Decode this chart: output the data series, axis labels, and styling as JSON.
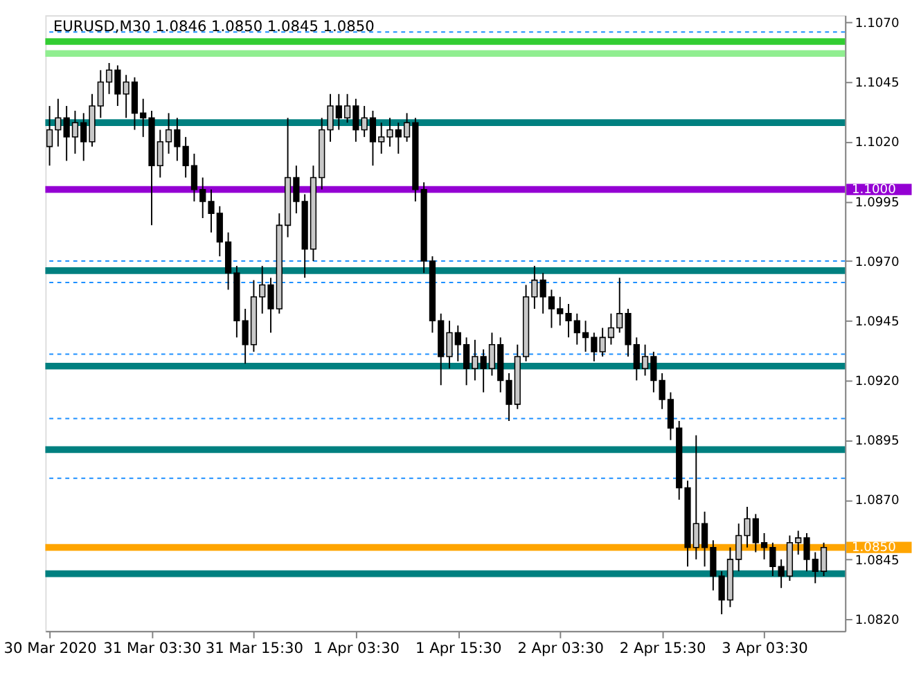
{
  "chart_data": {
    "type": "candlestick",
    "title": "EURUSD,M30  1.0846 1.0850 1.0845 1.0850",
    "x": [
      "2020-03-30T15:30",
      "2020-03-30T16:30",
      "2020-03-30T17:30",
      "2020-03-30T18:30",
      "2020-03-30T19:30",
      "2020-03-30T20:30",
      "2020-03-30T21:30",
      "2020-03-30T22:30",
      "2020-03-30T23:30",
      "2020-03-31T00:30",
      "2020-03-31T01:30",
      "2020-03-31T02:30",
      "2020-03-31T03:30",
      "2020-03-31T04:30",
      "2020-03-31T05:30",
      "2020-03-31T06:30",
      "2020-03-31T07:30",
      "2020-03-31T08:30",
      "2020-03-31T09:30",
      "2020-03-31T10:30",
      "2020-03-31T11:30",
      "2020-03-31T12:30",
      "2020-03-31T13:30",
      "2020-03-31T14:30",
      "2020-03-31T15:30",
      "2020-03-31T16:30",
      "2020-03-31T17:30",
      "2020-03-31T18:30",
      "2020-03-31T19:30",
      "2020-03-31T20:30",
      "2020-03-31T21:30",
      "2020-03-31T22:30",
      "2020-03-31T23:30",
      "2020-04-01T00:30",
      "2020-04-01T01:30",
      "2020-04-01T02:30",
      "2020-04-01T03:30",
      "2020-04-01T04:30",
      "2020-04-01T05:30",
      "2020-04-01T06:30",
      "2020-04-01T07:30",
      "2020-04-01T08:30",
      "2020-04-01T09:30",
      "2020-04-01T10:30",
      "2020-04-01T11:30",
      "2020-04-01T12:30",
      "2020-04-01T13:30",
      "2020-04-01T14:30",
      "2020-04-01T15:30",
      "2020-04-01T16:30",
      "2020-04-01T17:30",
      "2020-04-01T18:30",
      "2020-04-01T19:30",
      "2020-04-01T20:30",
      "2020-04-01T21:30",
      "2020-04-01T22:30",
      "2020-04-01T23:30",
      "2020-04-02T00:30",
      "2020-04-02T01:30",
      "2020-04-02T02:30",
      "2020-04-02T03:30",
      "2020-04-02T04:30",
      "2020-04-02T05:30",
      "2020-04-02T06:30",
      "2020-04-02T07:30",
      "2020-04-02T08:30",
      "2020-04-02T09:30",
      "2020-04-02T10:30",
      "2020-04-02T11:30",
      "2020-04-02T12:30",
      "2020-04-02T13:30",
      "2020-04-02T14:30",
      "2020-04-02T15:30",
      "2020-04-02T16:30",
      "2020-04-02T17:30",
      "2020-04-02T18:30",
      "2020-04-02T19:30",
      "2020-04-02T20:30",
      "2020-04-02T21:30",
      "2020-04-02T22:30",
      "2020-04-02T23:30",
      "2020-04-03T00:30",
      "2020-04-03T01:30",
      "2020-04-03T02:30",
      "2020-04-03T03:30",
      "2020-04-03T04:30",
      "2020-04-03T05:30",
      "2020-04-03T06:30",
      "2020-04-03T07:30",
      "2020-04-03T08:30",
      "2020-04-03T09:30",
      "2020-04-03T10:30"
    ],
    "ohlc": [
      [
        1.1018,
        1.1035,
        1.101,
        1.1025
      ],
      [
        1.1025,
        1.1038,
        1.1018,
        1.103
      ],
      [
        1.103,
        1.1035,
        1.1012,
        1.1022
      ],
      [
        1.1022,
        1.1033,
        1.1015,
        1.1028
      ],
      [
        1.1028,
        1.1032,
        1.1012,
        1.102
      ],
      [
        1.102,
        1.104,
        1.1018,
        1.1035
      ],
      [
        1.1035,
        1.105,
        1.103,
        1.1045
      ],
      [
        1.1045,
        1.1053,
        1.104,
        1.105
      ],
      [
        1.105,
        1.1052,
        1.1035,
        1.104
      ],
      [
        1.104,
        1.1048,
        1.103,
        1.1045
      ],
      [
        1.1045,
        1.1047,
        1.1025,
        1.1032
      ],
      [
        1.1032,
        1.1038,
        1.1022,
        1.103
      ],
      [
        1.103,
        1.1033,
        1.0985,
        1.101
      ],
      [
        1.101,
        1.1025,
        1.1005,
        1.102
      ],
      [
        1.102,
        1.1032,
        1.1015,
        1.1025
      ],
      [
        1.1025,
        1.103,
        1.1012,
        1.1018
      ],
      [
        1.1018,
        1.1022,
        1.1005,
        1.101
      ],
      [
        1.101,
        1.1015,
        1.0995,
        1.1
      ],
      [
        1.1,
        1.1005,
        1.0988,
        1.0995
      ],
      [
        1.0995,
        1.1,
        1.0982,
        1.099
      ],
      [
        1.099,
        1.0993,
        1.0972,
        1.0978
      ],
      [
        1.0978,
        1.0982,
        1.0958,
        1.0965
      ],
      [
        1.0965,
        1.0968,
        1.0938,
        1.0945
      ],
      [
        1.0945,
        1.095,
        1.0927,
        1.0935
      ],
      [
        1.0935,
        1.0962,
        1.0932,
        1.0955
      ],
      [
        1.0955,
        1.0968,
        1.0948,
        1.096
      ],
      [
        1.096,
        1.0963,
        1.094,
        1.095
      ],
      [
        1.095,
        1.099,
        1.0948,
        1.0985
      ],
      [
        1.0985,
        1.103,
        1.098,
        1.1005
      ],
      [
        1.1005,
        1.101,
        1.099,
        1.0995
      ],
      [
        1.0995,
        1.0998,
        1.0963,
        1.0975
      ],
      [
        1.0975,
        1.101,
        1.097,
        1.1005
      ],
      [
        1.1005,
        1.103,
        1.1,
        1.1025
      ],
      [
        1.1025,
        1.104,
        1.102,
        1.1035
      ],
      [
        1.1035,
        1.104,
        1.1025,
        1.103
      ],
      [
        1.103,
        1.104,
        1.1028,
        1.1035
      ],
      [
        1.1035,
        1.1038,
        1.102,
        1.1025
      ],
      [
        1.1025,
        1.1035,
        1.1022,
        1.103
      ],
      [
        1.103,
        1.1033,
        1.101,
        1.102
      ],
      [
        1.102,
        1.1028,
        1.1015,
        1.1022
      ],
      [
        1.1022,
        1.103,
        1.1018,
        1.1025
      ],
      [
        1.1025,
        1.1028,
        1.1015,
        1.1022
      ],
      [
        1.1022,
        1.1032,
        1.102,
        1.1028
      ],
      [
        1.1028,
        1.103,
        1.0995,
        1.1
      ],
      [
        1.1,
        1.1003,
        1.0965,
        1.097
      ],
      [
        1.097,
        1.0972,
        1.094,
        1.0945
      ],
      [
        1.0945,
        1.0948,
        1.0918,
        1.093
      ],
      [
        1.093,
        1.0945,
        1.0925,
        1.094
      ],
      [
        1.094,
        1.0943,
        1.0928,
        1.0935
      ],
      [
        1.0935,
        1.0938,
        1.0918,
        1.0925
      ],
      [
        1.0925,
        1.0937,
        1.092,
        1.093
      ],
      [
        1.093,
        1.0933,
        1.0915,
        1.0925
      ],
      [
        1.0925,
        1.094,
        1.0922,
        1.0935
      ],
      [
        1.0935,
        1.0938,
        1.0915,
        1.092
      ],
      [
        1.092,
        1.0923,
        1.0903,
        1.091
      ],
      [
        1.091,
        1.0935,
        1.0908,
        1.093
      ],
      [
        1.093,
        1.096,
        1.0928,
        1.0955
      ],
      [
        1.0955,
        1.0968,
        1.095,
        1.0962
      ],
      [
        1.0962,
        1.0965,
        1.0948,
        1.0955
      ],
      [
        1.0955,
        1.0958,
        1.0942,
        1.095
      ],
      [
        1.095,
        1.0955,
        1.0943,
        1.0948
      ],
      [
        1.0948,
        1.0952,
        1.0938,
        1.0945
      ],
      [
        1.0945,
        1.0948,
        1.0935,
        1.094
      ],
      [
        1.094,
        1.0945,
        1.0932,
        1.0938
      ],
      [
        1.0938,
        1.094,
        1.0928,
        1.0932
      ],
      [
        1.0932,
        1.0942,
        1.093,
        1.0938
      ],
      [
        1.0938,
        1.0948,
        1.0935,
        1.0942
      ],
      [
        1.0942,
        1.0963,
        1.094,
        1.0948
      ],
      [
        1.0948,
        1.095,
        1.093,
        1.0935
      ],
      [
        1.0935,
        1.0938,
        1.092,
        1.0925
      ],
      [
        1.0925,
        1.0935,
        1.0922,
        1.093
      ],
      [
        1.093,
        1.0932,
        1.0915,
        1.092
      ],
      [
        1.092,
        1.0923,
        1.0908,
        1.0912
      ],
      [
        1.0912,
        1.0915,
        1.0895,
        1.09
      ],
      [
        1.09,
        1.0903,
        1.087,
        1.0875
      ],
      [
        1.0875,
        1.0878,
        1.0842,
        1.085
      ],
      [
        1.085,
        1.0897,
        1.0845,
        1.086
      ],
      [
        1.086,
        1.0865,
        1.0842,
        1.085
      ],
      [
        1.085,
        1.0853,
        1.0832,
        1.0838
      ],
      [
        1.0838,
        1.084,
        1.0822,
        1.0828
      ],
      [
        1.0828,
        1.085,
        1.0825,
        1.0845
      ],
      [
        1.0845,
        1.086,
        1.084,
        1.0855
      ],
      [
        1.0855,
        1.0867,
        1.085,
        1.0862
      ],
      [
        1.0862,
        1.0864,
        1.0848,
        1.0852
      ],
      [
        1.0852,
        1.0856,
        1.0845,
        1.085
      ],
      [
        1.085,
        1.0852,
        1.0838,
        1.0842
      ],
      [
        1.0842,
        1.0845,
        1.0833,
        1.0838
      ],
      [
        1.0838,
        1.0855,
        1.0836,
        1.0852
      ],
      [
        1.0852,
        1.0857,
        1.0847,
        1.0854
      ],
      [
        1.0854,
        1.0856,
        1.084,
        1.0845
      ],
      [
        1.0845,
        1.0848,
        1.0835,
        1.084
      ],
      [
        1.084,
        1.0852,
        1.0838,
        1.085
      ]
    ],
    "xlim": [
      "2020-03-30T15:00",
      "2020-04-03T13:00"
    ],
    "xticks": [
      {
        "value": "2020-03-30T15:30",
        "label": "30 Mar 2020"
      },
      {
        "value": "2020-03-31T03:30",
        "label": "31 Mar 03:30"
      },
      {
        "value": "2020-03-31T15:30",
        "label": "31 Mar 15:30"
      },
      {
        "value": "2020-04-01T03:30",
        "label": "1 Apr 03:30"
      },
      {
        "value": "2020-04-01T15:30",
        "label": "1 Apr 15:30"
      },
      {
        "value": "2020-04-02T03:30",
        "label": "2 Apr 03:30"
      },
      {
        "value": "2020-04-02T15:30",
        "label": "2 Apr 15:30"
      },
      {
        "value": "2020-04-03T03:30",
        "label": "3 Apr 03:30"
      }
    ],
    "ylim": [
      1.0815,
      1.1073
    ],
    "yticks": [
      {
        "value": 1.082,
        "label": "1.0820"
      },
      1.0845,
      {
        "value": 1.087,
        "label": "1.0870"
      },
      1.0895,
      {
        "value": 1.092,
        "label": "1.0920"
      },
      1.0945,
      {
        "value": 1.097,
        "label": "1.0970"
      },
      1.0995,
      {
        "value": 1.102,
        "label": "1.1020"
      },
      1.1045,
      {
        "value": 1.107,
        "label": "1.1070"
      }
    ],
    "ref_lines": [
      {
        "axis": "y",
        "value": 1.1066,
        "color": "#1e90ff",
        "line_style": "dashed"
      },
      {
        "axis": "y",
        "value": 1.1062,
        "color": "#32cd32",
        "line_style": "solid"
      },
      {
        "axis": "y",
        "value": 1.1057,
        "color": "#90ee90",
        "line_style": "solid"
      },
      {
        "axis": "y",
        "value": 1.1028,
        "color": "#008080",
        "line_style": "solid"
      },
      {
        "axis": "y",
        "value": 1.1,
        "color": "#9400d3",
        "line_style": "solid",
        "label": "1.1000"
      },
      {
        "axis": "y",
        "value": 1.097,
        "color": "#1e90ff",
        "line_style": "dashed"
      },
      {
        "axis": "y",
        "value": 1.0966,
        "color": "#008080",
        "line_style": "solid"
      },
      {
        "axis": "y",
        "value": 1.0961,
        "color": "#1e90ff",
        "line_style": "dashed"
      },
      {
        "axis": "y",
        "value": 1.0931,
        "color": "#1e90ff",
        "line_style": "dashed"
      },
      {
        "axis": "y",
        "value": 1.0926,
        "color": "#008080",
        "line_style": "solid"
      },
      {
        "axis": "y",
        "value": 1.0904,
        "color": "#1e90ff",
        "line_style": "dashed"
      },
      {
        "axis": "y",
        "value": 1.0891,
        "color": "#008080",
        "line_style": "solid"
      },
      {
        "axis": "y",
        "value": 1.0879,
        "color": "#1e90ff",
        "line_style": "dashed"
      },
      {
        "axis": "y",
        "value": 1.085,
        "color": "#ffa500",
        "line_style": "solid",
        "label": "1.0850"
      },
      {
        "axis": "y",
        "value": 1.0839,
        "color": "#008080",
        "line_style": "solid"
      }
    ],
    "grid": false
  }
}
